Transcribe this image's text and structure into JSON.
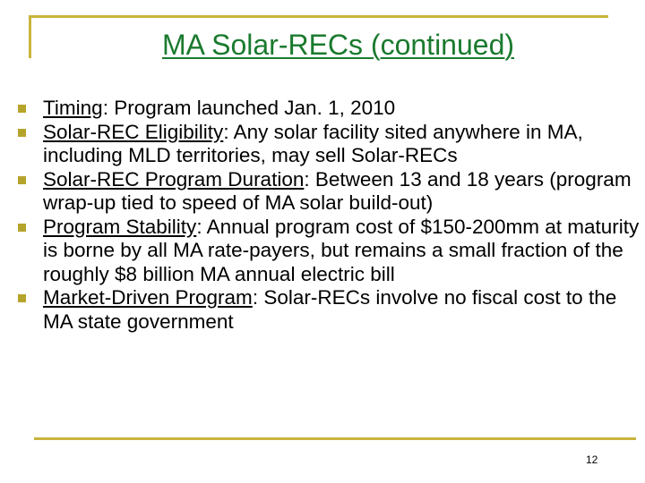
{
  "slide": {
    "title": "MA Solar-RECs (continued)",
    "page_number": "12",
    "bullets": [
      {
        "term": "Timing",
        "text": ":  Program launched Jan. 1, 2010"
      },
      {
        "term": "Solar-REC Eligibility",
        "text": ":  Any solar facility sited anywhere in MA, including MLD territories, may sell Solar-RECs"
      },
      {
        "term": "Solar-REC Program Duration",
        "text": ":   Between 13 and 18 years (program wrap-up tied to speed of MA solar build-out)"
      },
      {
        "term": "Program Stability",
        "text": ":   Annual program cost of $150-200mm at maturity is borne by all MA rate-payers, but remains a small fraction of the roughly $8 billion MA annual electric bill"
      },
      {
        "term": "Market-Driven Program",
        "text": ":  Solar-RECs involve no fiscal cost to the MA state government"
      }
    ]
  },
  "colors": {
    "title": "#1a7a2e",
    "accent": "#c8b43c",
    "bullet_marker": "#b5a42c"
  }
}
